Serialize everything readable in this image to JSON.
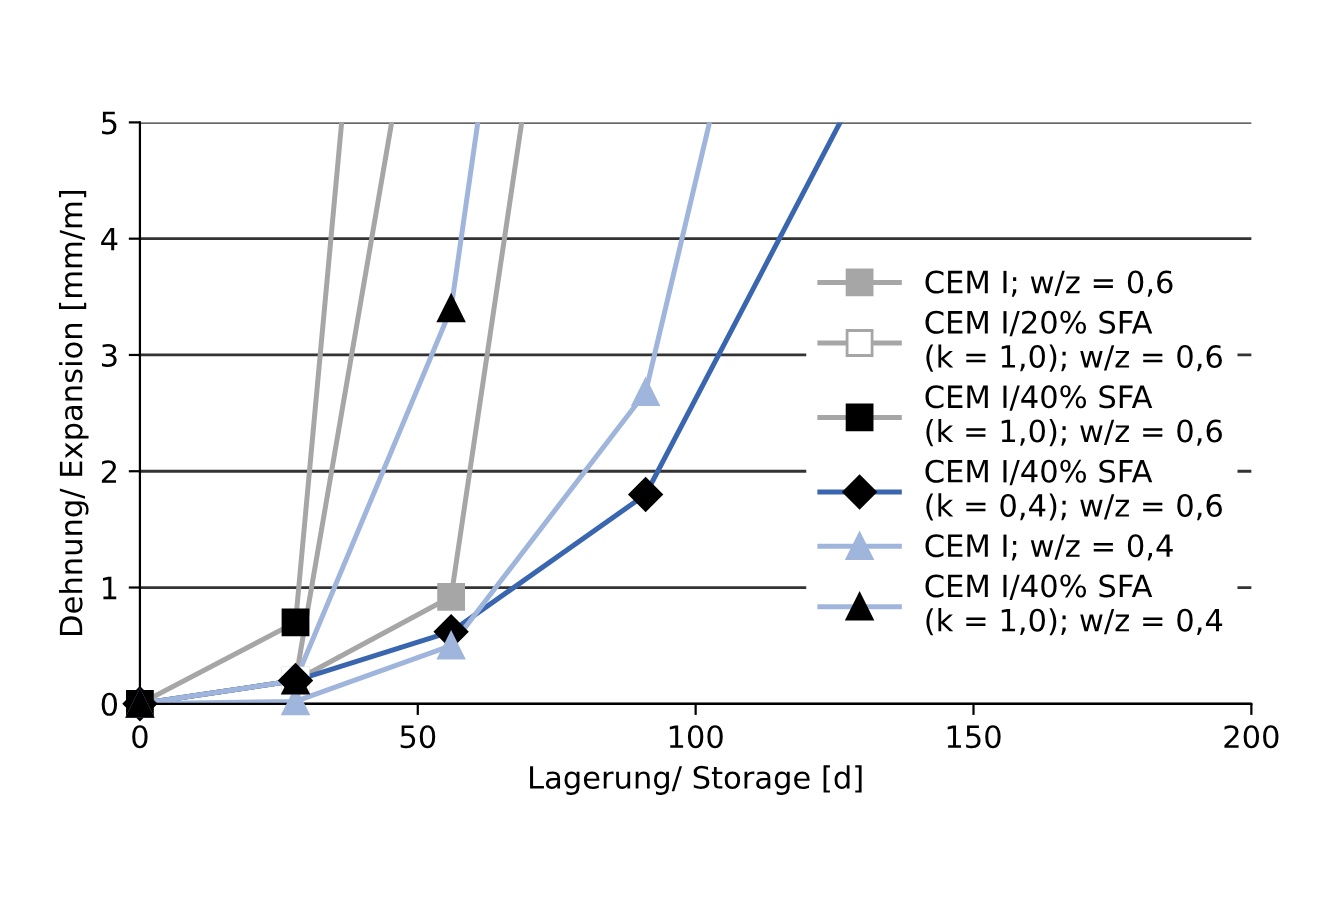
{
  "chart_data": {
    "type": "line",
    "xlabel": "Lagerung/ Storage [d]",
    "ylabel": "Dehnung/ Expansion [mm/m]",
    "xlim": [
      0,
      200
    ],
    "xticks": [
      0,
      50,
      100,
      150,
      200
    ],
    "ylim": [
      0,
      5
    ],
    "yticks": [
      0,
      1,
      2,
      3,
      4,
      5
    ],
    "grid": "y",
    "legend": "right",
    "series": [
      {
        "name": "CEM I; w/z = 0,6",
        "color": "#a6a6a6",
        "marker": "square",
        "colors": [
          "#a6a6a6",
          "#a6a6a6",
          "#a6a6a6",
          null
        ],
        "x": [
          0,
          28,
          56,
          68.7
        ],
        "values": [
          0,
          0.2,
          0.92,
          5
        ]
      },
      {
        "name": "CEM I/20% SFA\n(k = 1,0); w/z = 0,6",
        "color": "#a6a6a6",
        "marker": "square",
        "colors": [
          "#ffffff",
          "#ffffff",
          null
        ],
        "x": [
          0,
          28,
          45.3
        ],
        "values": [
          0,
          0.2,
          5
        ]
      },
      {
        "name": "CEM I/40% SFA\n(k = 1,0); w/z = 0,6",
        "color": "#a6a6a6",
        "marker": "square",
        "colors": [
          "#000000",
          "#000000",
          null
        ],
        "x": [
          0,
          28,
          36.3
        ],
        "values": [
          0,
          0.7,
          5
        ]
      },
      {
        "name": "CEM I/40% SFA\n(k = 0,4); w/z = 0,6",
        "color": "#3a66b0",
        "marker": "diamond",
        "colors": [
          "#000000",
          "#000000",
          "#000000",
          "#000000",
          null
        ],
        "x": [
          0,
          28,
          56,
          91,
          126
        ],
        "values": [
          0,
          0.2,
          0.62,
          1.8,
          5
        ]
      },
      {
        "name": "CEM I; w/z = 0,4",
        "color": "#9fb5dc",
        "marker": "triangle",
        "colors": [
          "#9fb5dc",
          "#9fb5dc",
          "#9fb5dc",
          "#9fb5dc",
          null
        ],
        "x": [
          0,
          28,
          56,
          91,
          102.5
        ],
        "values": [
          0,
          0.02,
          0.5,
          2.68,
          5
        ]
      },
      {
        "name": "CEM I/40% SFA\n(k = 1,0); w/z = 0,4",
        "color": "#9fb5dc",
        "marker": "triangle",
        "colors": [
          "#000000",
          "#000000",
          "#000000",
          null
        ],
        "x": [
          0,
          28,
          56,
          60.8
        ],
        "values": [
          0,
          0.2,
          3.4,
          5
        ]
      }
    ]
  }
}
